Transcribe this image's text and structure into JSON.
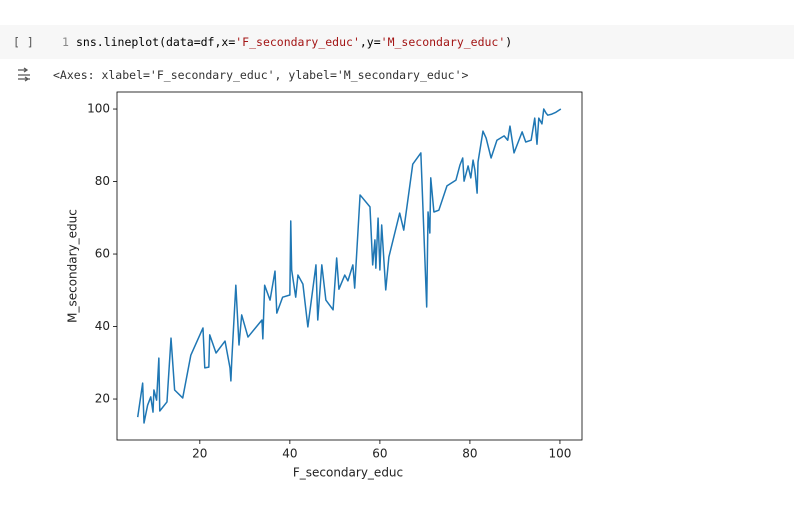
{
  "cell": {
    "run_label": "[ ]",
    "line_number": "1",
    "code_parts": [
      "sns.lineplot(data=df,x=",
      "'F_secondary_educ'",
      ",y=",
      "'M_secondary_educ'",
      ")"
    ]
  },
  "output": {
    "repr": "<Axes: xlabel='F_secondary_educ', ylabel='M_secondary_educ'>"
  },
  "chart_data": {
    "type": "line",
    "xlabel": "F_secondary_educ",
    "ylabel": "M_secondary_educ",
    "color": "#1f77b4",
    "x": [
      6.2,
      7.3,
      7.6,
      8.4,
      9.1,
      9.6,
      9.8,
      10.4,
      10.9,
      11.1,
      12.7,
      13.6,
      14.4,
      16.2,
      18,
      20.7,
      21.1,
      22,
      22.2,
      23.6,
      25.6,
      26.7,
      26.9,
      27.1,
      28,
      28.7,
      29.3,
      30.7,
      33.8,
      34,
      34.4,
      35.6,
      36.7,
      37.1,
      38.4,
      40,
      40.2,
      40.4,
      41.3,
      41.8,
      42.9,
      44,
      45.8,
      46.2,
      47.1,
      48,
      49.6,
      50.4,
      50.9,
      52.2,
      52.9,
      54,
      54.4,
      55.6,
      57.8,
      58.4,
      58.9,
      59.1,
      59.6,
      60,
      60.4,
      61.3,
      62,
      64.4,
      65.3,
      67.3,
      69.1,
      70.4,
      70.7,
      71.1,
      71.3,
      72,
      73.1,
      74.9,
      76.9,
      77.8,
      78.4,
      78.7,
      79.6,
      80.2,
      80.7,
      81.1,
      81.6,
      81.8,
      82.9,
      83.6,
      84.7,
      86,
      87.6,
      88.4,
      88.9,
      89.8,
      91.6,
      92.4,
      93.6,
      94.4,
      94.9,
      95.3,
      96,
      96.4,
      96.9,
      97.3,
      98.2,
      99.1,
      100.2
    ],
    "values": [
      15,
      24.4,
      13.4,
      18.3,
      20.6,
      16.4,
      22.5,
      19.7,
      31.3,
      16.7,
      19.2,
      36.8,
      22.5,
      20.3,
      32.1,
      39.6,
      28.6,
      28.8,
      37.7,
      32.7,
      36,
      28.6,
      25,
      30.8,
      51.4,
      34.9,
      43.2,
      37.1,
      41.8,
      36.6,
      51.4,
      47.3,
      55.3,
      43.7,
      48.1,
      48.7,
      69.1,
      55.6,
      48.1,
      54.2,
      51.7,
      39.9,
      57,
      41.8,
      57,
      47.3,
      44.6,
      58.9,
      50.3,
      54.2,
      52.6,
      57,
      50.6,
      76.3,
      73,
      57,
      63.9,
      56.1,
      69.9,
      55.6,
      68,
      50.1,
      59.2,
      71.3,
      66.6,
      84.8,
      87.9,
      45.4,
      71.6,
      65.8,
      81,
      71.6,
      72.1,
      78.8,
      80.4,
      84.6,
      86.5,
      80.1,
      84.3,
      81,
      85.9,
      83.2,
      76.8,
      85.4,
      93.9,
      92,
      86.5,
      91.4,
      92.6,
      91.4,
      95.3,
      87.9,
      93.7,
      90.9,
      91.4,
      97.5,
      90.3,
      97.5,
      95.9,
      100,
      98.9,
      98.3,
      98.6,
      99.1,
      100
    ],
    "xlim": [
      1.6,
      104.9
    ],
    "ylim": [
      8.7,
      104.7
    ],
    "xticks": [
      20,
      40,
      60,
      80,
      100
    ],
    "yticks": [
      20,
      40,
      60,
      80,
      100
    ]
  }
}
